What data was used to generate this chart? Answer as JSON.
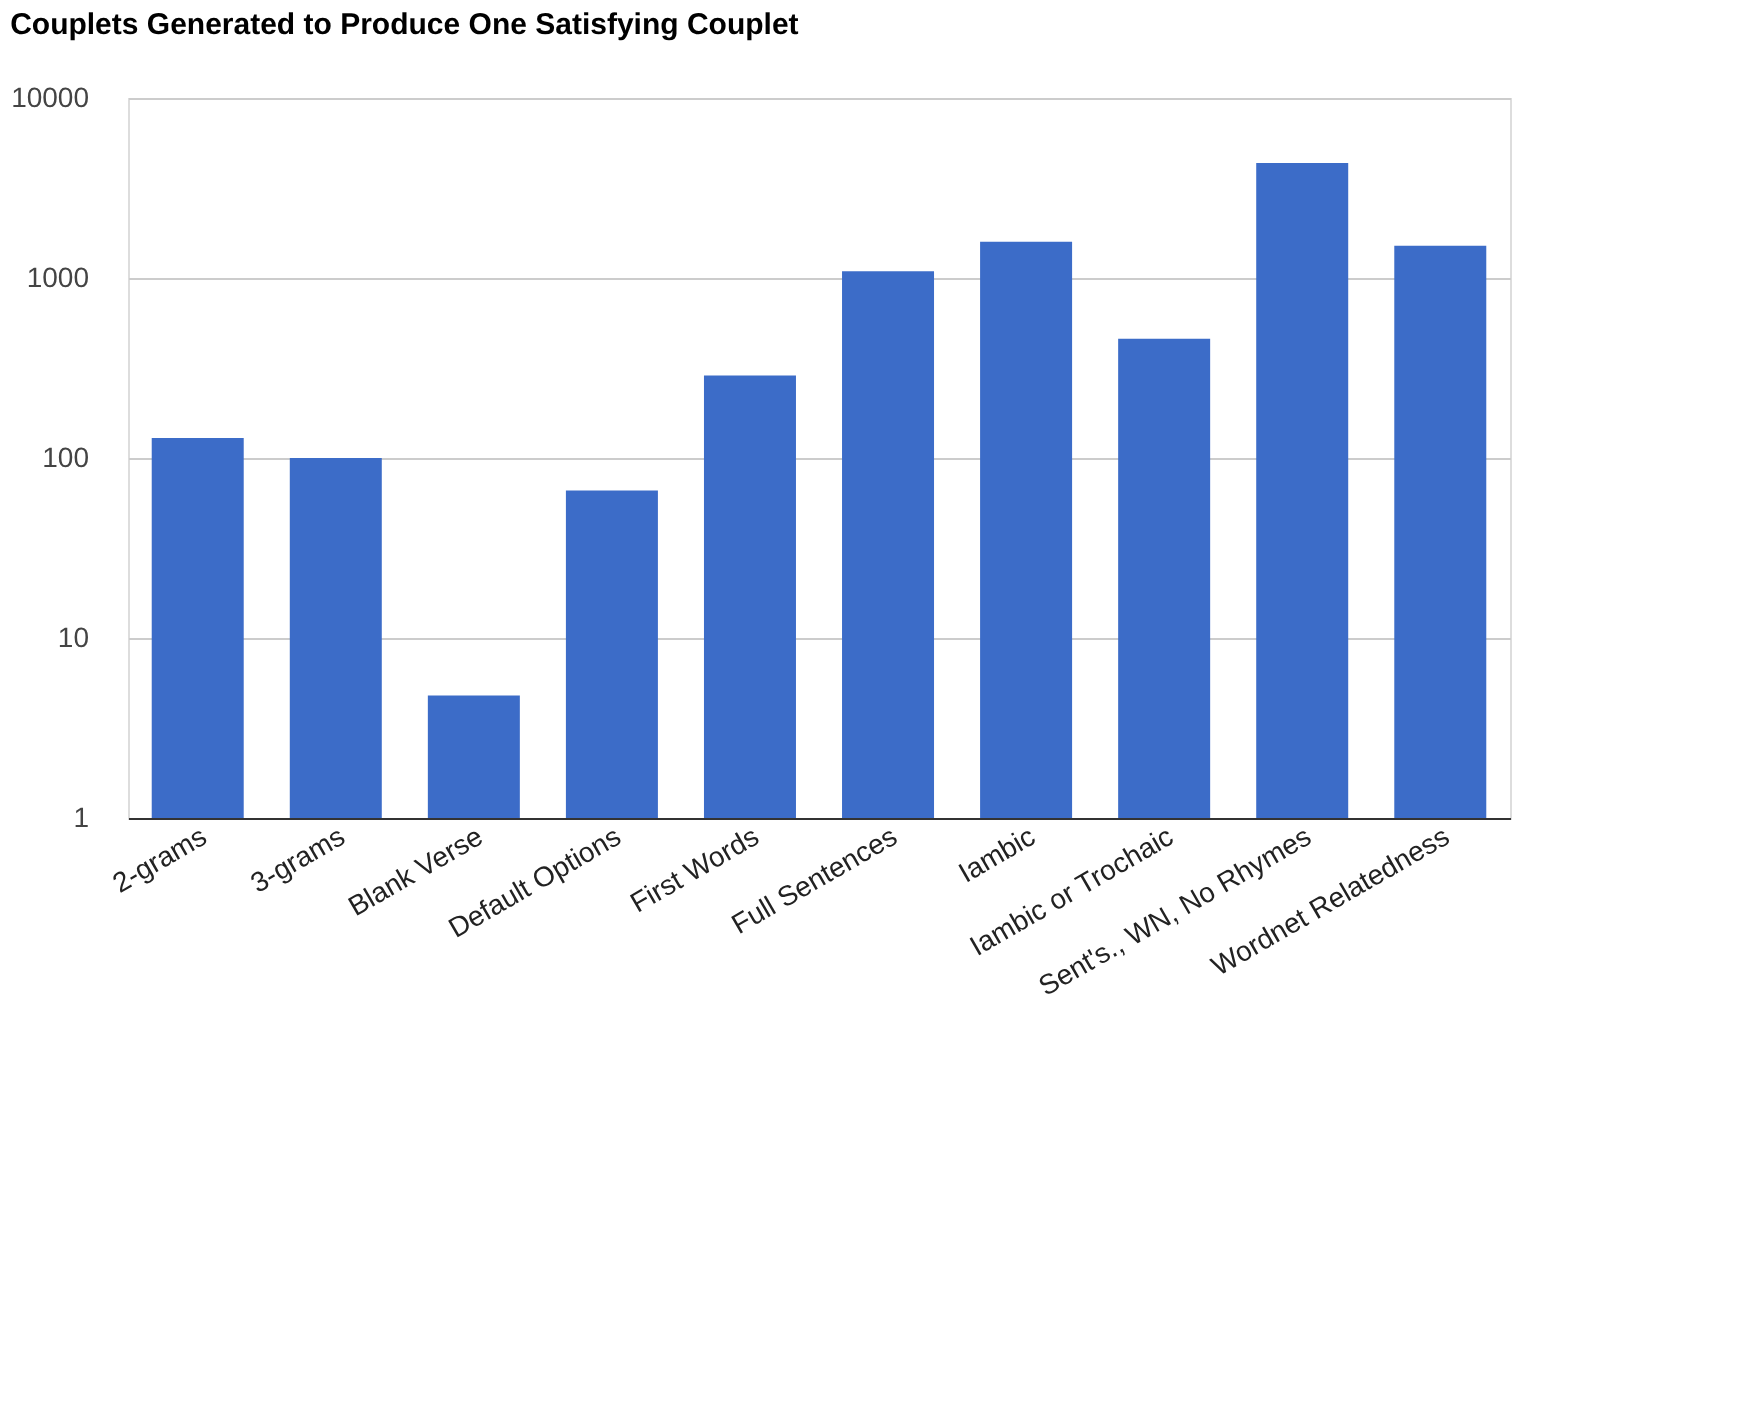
{
  "chart_data": {
    "type": "bar",
    "title": "Couplets Generated to Produce One Satisfying Couplet",
    "categories": [
      "2-grams",
      "3-grams",
      "Blank Verse",
      "Default Options",
      "First Words",
      "Full Sentences",
      "Iambic",
      "Iambic or Trochaic",
      "Sent's., WN, No Rhymes",
      "Wordnet Relatedness"
    ],
    "values": [
      129,
      100,
      4.8,
      66,
      287,
      1090,
      1590,
      460,
      4350,
      1510
    ],
    "color": "#3c6cc8",
    "log": true,
    "ylim": [
      1,
      10000
    ],
    "yticks": [
      1,
      10,
      100,
      1000,
      10000
    ],
    "grid": "y"
  }
}
